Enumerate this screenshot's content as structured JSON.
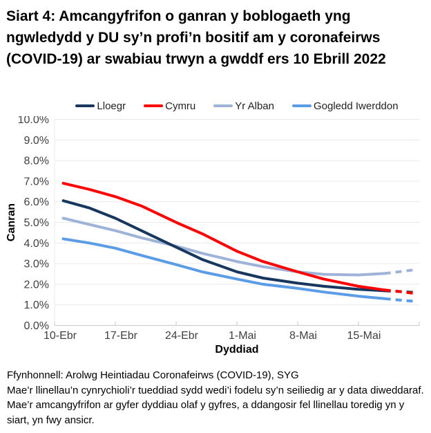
{
  "chart_data": {
    "type": "line",
    "title": "Siart 4: Amcangyfrifon o ganran y boblogaeth yng ngwledydd y DU sy’n profi’n bositif am y coronafeirws (COVID-19) ar swabiau trwyn a gwddf ers 10 Ebrill 2022",
    "xlabel": "Dyddiad",
    "ylabel": "Canran",
    "ylim": [
      0,
      10
    ],
    "xlim_days": [
      0,
      42
    ],
    "grid": "horizontal",
    "legend_position": "top",
    "x_ticks": [
      {
        "x": 0,
        "label": "10-Ebr"
      },
      {
        "x": 7,
        "label": "17-Ebr"
      },
      {
        "x": 14,
        "label": "24-Ebr"
      },
      {
        "x": 21,
        "label": "1-Mai"
      },
      {
        "x": 28,
        "label": "8-Mai"
      },
      {
        "x": 35,
        "label": "15-Mai"
      },
      {
        "x": 42,
        "label": ""
      }
    ],
    "y_ticks": [
      "0.0%",
      "1.0%",
      "2.0%",
      "3.0%",
      "4.0%",
      "5.0%",
      "6.0%",
      "7.0%",
      "8.0%",
      "9.0%",
      "10.0%"
    ],
    "dashed_note": "dashed segments = least certain estimates for final days of series",
    "series": [
      {
        "name": "Lloegr",
        "color": "#17375E",
        "points": [
          [
            1,
            6.05
          ],
          [
            4,
            5.7
          ],
          [
            7,
            5.2
          ],
          [
            10,
            4.6
          ],
          [
            14,
            3.8
          ],
          [
            17,
            3.2
          ],
          [
            21,
            2.6
          ],
          [
            24,
            2.3
          ],
          [
            28,
            2.05
          ],
          [
            31,
            1.9
          ],
          [
            35,
            1.75
          ],
          [
            38,
            1.68
          ]
        ],
        "dashed_points": [
          [
            38,
            1.68
          ],
          [
            40,
            1.64
          ],
          [
            41.5,
            1.6
          ]
        ]
      },
      {
        "name": "Cymru",
        "color": "#FF0000",
        "points": [
          [
            1,
            6.9
          ],
          [
            4,
            6.6
          ],
          [
            7,
            6.25
          ],
          [
            10,
            5.8
          ],
          [
            14,
            5.0
          ],
          [
            17,
            4.45
          ],
          [
            21,
            3.6
          ],
          [
            24,
            3.1
          ],
          [
            28,
            2.6
          ],
          [
            31,
            2.25
          ],
          [
            35,
            1.9
          ],
          [
            38,
            1.72
          ]
        ],
        "dashed_points": [
          [
            38,
            1.72
          ],
          [
            40,
            1.63
          ],
          [
            41.5,
            1.55
          ]
        ]
      },
      {
        "name": "Yr Alban",
        "color": "#9FB3D9",
        "points": [
          [
            1,
            5.2
          ],
          [
            4,
            4.9
          ],
          [
            7,
            4.6
          ],
          [
            10,
            4.25
          ],
          [
            14,
            3.85
          ],
          [
            17,
            3.5
          ],
          [
            21,
            3.1
          ],
          [
            24,
            2.85
          ],
          [
            28,
            2.6
          ],
          [
            31,
            2.48
          ],
          [
            35,
            2.45
          ],
          [
            38,
            2.52
          ]
        ],
        "dashed_points": [
          [
            38,
            2.52
          ],
          [
            40,
            2.62
          ],
          [
            41.5,
            2.7
          ]
        ]
      },
      {
        "name": "Gogledd Iwerddon",
        "color": "#5B9CE6",
        "points": [
          [
            1,
            4.2
          ],
          [
            4,
            4.0
          ],
          [
            7,
            3.75
          ],
          [
            10,
            3.4
          ],
          [
            14,
            2.95
          ],
          [
            17,
            2.6
          ],
          [
            21,
            2.25
          ],
          [
            24,
            2.0
          ],
          [
            28,
            1.8
          ],
          [
            31,
            1.62
          ],
          [
            35,
            1.42
          ],
          [
            38,
            1.3
          ]
        ],
        "dashed_points": [
          [
            38,
            1.3
          ],
          [
            40,
            1.22
          ],
          [
            41.5,
            1.17
          ]
        ]
      }
    ],
    "axis_color": "#c9c9c9",
    "gridline_color": "#e9e9e9",
    "tick_label_color": "#404040"
  },
  "footer": {
    "source": "Ffynhonnell: Arolwg Heintiadau Coronafeirws (COVID-19), SYG",
    "note": "Mae’r llinellau’n cynrychioli’r tueddiad sydd wedi’i fodelu sy’n seiliedig ar y data diweddaraf. Mae’r amcangyfrifon ar gyfer dyddiau olaf y gyfres, a ddangosir fel llinellau toredig yn y siart, yn fwy ansicr."
  }
}
